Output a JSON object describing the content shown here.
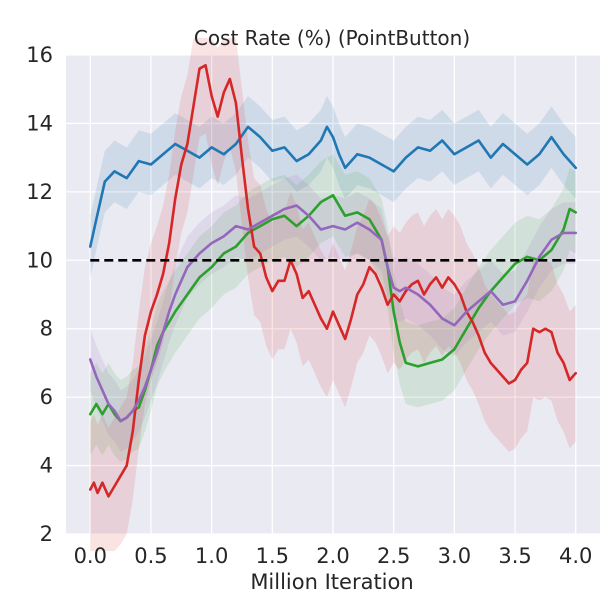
{
  "chart_data": {
    "type": "line",
    "title": "Cost Rate (%) (PointButton)",
    "xlabel": "Million Iteration",
    "ylabel": "",
    "xlim": [
      -0.2,
      4.2
    ],
    "ylim": [
      2,
      16
    ],
    "xticks": [
      0.0,
      0.5,
      1.0,
      1.5,
      2.0,
      2.5,
      3.0,
      3.5,
      4.0
    ],
    "xtick_labels": [
      "0.0",
      "0.5",
      "1.0",
      "1.5",
      "2.0",
      "2.5",
      "3.0",
      "3.5",
      "4.0"
    ],
    "yticks": [
      2,
      4,
      6,
      8,
      10,
      12,
      14,
      16
    ],
    "ytick_labels": [
      "2",
      "4",
      "6",
      "8",
      "10",
      "12",
      "14",
      "16"
    ],
    "grid": true,
    "background": "#eaeaf2",
    "threshold": {
      "y": 10,
      "x_range": [
        0,
        4
      ],
      "color": "#000000",
      "style": "dashed"
    },
    "series": [
      {
        "color": "#1f77b4",
        "band_halfwidth": 0.9,
        "points": [
          [
            0.0,
            10.4
          ],
          [
            0.05,
            11.2
          ],
          [
            0.12,
            12.3
          ],
          [
            0.2,
            12.6
          ],
          [
            0.3,
            12.4
          ],
          [
            0.4,
            12.9
          ],
          [
            0.5,
            12.8
          ],
          [
            0.6,
            13.1
          ],
          [
            0.7,
            13.4
          ],
          [
            0.8,
            13.2
          ],
          [
            0.9,
            13.0
          ],
          [
            1.0,
            13.3
          ],
          [
            1.1,
            13.1
          ],
          [
            1.2,
            13.4
          ],
          [
            1.3,
            13.9
          ],
          [
            1.4,
            13.6
          ],
          [
            1.5,
            13.2
          ],
          [
            1.6,
            13.3
          ],
          [
            1.7,
            12.9
          ],
          [
            1.8,
            13.1
          ],
          [
            1.9,
            13.5
          ],
          [
            1.95,
            13.9
          ],
          [
            2.0,
            13.6
          ],
          [
            2.05,
            13.1
          ],
          [
            2.1,
            12.7
          ],
          [
            2.2,
            13.1
          ],
          [
            2.3,
            13.0
          ],
          [
            2.4,
            12.8
          ],
          [
            2.5,
            12.6
          ],
          [
            2.6,
            13.0
          ],
          [
            2.7,
            13.3
          ],
          [
            2.8,
            13.2
          ],
          [
            2.9,
            13.5
          ],
          [
            3.0,
            13.1
          ],
          [
            3.1,
            13.3
          ],
          [
            3.2,
            13.5
          ],
          [
            3.3,
            13.0
          ],
          [
            3.4,
            13.4
          ],
          [
            3.5,
            13.1
          ],
          [
            3.6,
            12.8
          ],
          [
            3.7,
            13.1
          ],
          [
            3.8,
            13.6
          ],
          [
            3.9,
            13.1
          ],
          [
            4.0,
            12.7
          ]
        ]
      },
      {
        "color": "#2ca02c",
        "band_halfwidth": 1.2,
        "points": [
          [
            0.0,
            5.5
          ],
          [
            0.05,
            5.8
          ],
          [
            0.1,
            5.5
          ],
          [
            0.15,
            5.8
          ],
          [
            0.2,
            5.5
          ],
          [
            0.25,
            5.3
          ],
          [
            0.3,
            5.4
          ],
          [
            0.35,
            5.6
          ],
          [
            0.4,
            5.7
          ],
          [
            0.45,
            6.2
          ],
          [
            0.5,
            6.8
          ],
          [
            0.55,
            7.5
          ],
          [
            0.6,
            7.9
          ],
          [
            0.7,
            8.5
          ],
          [
            0.8,
            9.0
          ],
          [
            0.9,
            9.5
          ],
          [
            1.0,
            9.8
          ],
          [
            1.1,
            10.2
          ],
          [
            1.2,
            10.4
          ],
          [
            1.3,
            10.8
          ],
          [
            1.4,
            11.0
          ],
          [
            1.5,
            11.2
          ],
          [
            1.6,
            11.3
          ],
          [
            1.7,
            11.0
          ],
          [
            1.8,
            11.3
          ],
          [
            1.9,
            11.7
          ],
          [
            2.0,
            11.9
          ],
          [
            2.1,
            11.3
          ],
          [
            2.2,
            11.4
          ],
          [
            2.3,
            11.2
          ],
          [
            2.4,
            10.6
          ],
          [
            2.45,
            9.8
          ],
          [
            2.5,
            8.5
          ],
          [
            2.55,
            7.6
          ],
          [
            2.6,
            7.0
          ],
          [
            2.7,
            6.9
          ],
          [
            2.8,
            7.0
          ],
          [
            2.9,
            7.1
          ],
          [
            3.0,
            7.4
          ],
          [
            3.1,
            8.0
          ],
          [
            3.2,
            8.6
          ],
          [
            3.3,
            9.1
          ],
          [
            3.4,
            9.5
          ],
          [
            3.5,
            9.9
          ],
          [
            3.6,
            10.1
          ],
          [
            3.7,
            10.0
          ],
          [
            3.8,
            10.3
          ],
          [
            3.9,
            10.9
          ],
          [
            3.95,
            11.5
          ],
          [
            4.0,
            11.4
          ]
        ]
      },
      {
        "color": "#d62728",
        "band_halfwidth": 2.0,
        "points": [
          [
            0.0,
            3.3
          ],
          [
            0.03,
            3.5
          ],
          [
            0.06,
            3.2
          ],
          [
            0.1,
            3.5
          ],
          [
            0.15,
            3.1
          ],
          [
            0.2,
            3.4
          ],
          [
            0.25,
            3.7
          ],
          [
            0.3,
            4.0
          ],
          [
            0.35,
            5.0
          ],
          [
            0.4,
            6.5
          ],
          [
            0.45,
            7.8
          ],
          [
            0.5,
            8.5
          ],
          [
            0.55,
            9.0
          ],
          [
            0.6,
            9.6
          ],
          [
            0.65,
            10.5
          ],
          [
            0.7,
            11.8
          ],
          [
            0.75,
            12.8
          ],
          [
            0.8,
            13.4
          ],
          [
            0.85,
            14.5
          ],
          [
            0.9,
            15.6
          ],
          [
            0.95,
            15.7
          ],
          [
            1.0,
            14.8
          ],
          [
            1.05,
            14.2
          ],
          [
            1.1,
            14.9
          ],
          [
            1.15,
            15.3
          ],
          [
            1.2,
            14.6
          ],
          [
            1.25,
            13.0
          ],
          [
            1.3,
            11.5
          ],
          [
            1.35,
            10.4
          ],
          [
            1.4,
            10.2
          ],
          [
            1.45,
            9.5
          ],
          [
            1.5,
            9.1
          ],
          [
            1.55,
            9.4
          ],
          [
            1.6,
            9.4
          ],
          [
            1.65,
            10.0
          ],
          [
            1.7,
            9.6
          ],
          [
            1.75,
            8.9
          ],
          [
            1.8,
            9.1
          ],
          [
            1.85,
            8.7
          ],
          [
            1.9,
            8.3
          ],
          [
            1.95,
            8.0
          ],
          [
            2.0,
            8.5
          ],
          [
            2.05,
            8.1
          ],
          [
            2.1,
            7.7
          ],
          [
            2.15,
            8.3
          ],
          [
            2.2,
            9.0
          ],
          [
            2.25,
            9.3
          ],
          [
            2.3,
            9.8
          ],
          [
            2.35,
            9.6
          ],
          [
            2.4,
            9.2
          ],
          [
            2.45,
            8.7
          ],
          [
            2.5,
            9.0
          ],
          [
            2.55,
            8.8
          ],
          [
            2.6,
            9.1
          ],
          [
            2.65,
            9.3
          ],
          [
            2.7,
            9.4
          ],
          [
            2.75,
            9.0
          ],
          [
            2.8,
            9.3
          ],
          [
            2.85,
            9.5
          ],
          [
            2.9,
            9.2
          ],
          [
            2.95,
            9.5
          ],
          [
            3.0,
            9.3
          ],
          [
            3.05,
            9.0
          ],
          [
            3.1,
            8.5
          ],
          [
            3.15,
            8.2
          ],
          [
            3.2,
            7.8
          ],
          [
            3.25,
            7.3
          ],
          [
            3.3,
            7.0
          ],
          [
            3.35,
            6.8
          ],
          [
            3.4,
            6.6
          ],
          [
            3.45,
            6.4
          ],
          [
            3.5,
            6.5
          ],
          [
            3.55,
            6.8
          ],
          [
            3.6,
            7.0
          ],
          [
            3.65,
            8.0
          ],
          [
            3.7,
            7.9
          ],
          [
            3.75,
            8.0
          ],
          [
            3.8,
            7.9
          ],
          [
            3.85,
            7.3
          ],
          [
            3.9,
            7.0
          ],
          [
            3.95,
            6.5
          ],
          [
            4.0,
            6.7
          ]
        ]
      },
      {
        "color": "#9467bd",
        "band_halfwidth": 0.9,
        "points": [
          [
            0.0,
            7.1
          ],
          [
            0.05,
            6.6
          ],
          [
            0.1,
            6.2
          ],
          [
            0.15,
            5.8
          ],
          [
            0.2,
            5.6
          ],
          [
            0.25,
            5.3
          ],
          [
            0.3,
            5.4
          ],
          [
            0.35,
            5.6
          ],
          [
            0.4,
            5.9
          ],
          [
            0.45,
            6.3
          ],
          [
            0.5,
            6.8
          ],
          [
            0.55,
            7.3
          ],
          [
            0.6,
            7.9
          ],
          [
            0.65,
            8.5
          ],
          [
            0.7,
            9.0
          ],
          [
            0.8,
            9.8
          ],
          [
            0.9,
            10.2
          ],
          [
            1.0,
            10.5
          ],
          [
            1.1,
            10.7
          ],
          [
            1.2,
            11.0
          ],
          [
            1.3,
            10.9
          ],
          [
            1.4,
            11.1
          ],
          [
            1.5,
            11.3
          ],
          [
            1.6,
            11.5
          ],
          [
            1.7,
            11.6
          ],
          [
            1.8,
            11.3
          ],
          [
            1.85,
            11.1
          ],
          [
            1.9,
            10.9
          ],
          [
            2.0,
            11.0
          ],
          [
            2.1,
            10.9
          ],
          [
            2.2,
            11.1
          ],
          [
            2.3,
            10.9
          ],
          [
            2.4,
            10.6
          ],
          [
            2.45,
            9.8
          ],
          [
            2.5,
            9.2
          ],
          [
            2.55,
            9.1
          ],
          [
            2.6,
            9.2
          ],
          [
            2.7,
            9.0
          ],
          [
            2.8,
            8.7
          ],
          [
            2.9,
            8.3
          ],
          [
            3.0,
            8.1
          ],
          [
            3.05,
            8.3
          ],
          [
            3.1,
            8.5
          ],
          [
            3.2,
            8.8
          ],
          [
            3.3,
            9.1
          ],
          [
            3.4,
            8.7
          ],
          [
            3.5,
            8.8
          ],
          [
            3.6,
            9.4
          ],
          [
            3.7,
            10.1
          ],
          [
            3.8,
            10.6
          ],
          [
            3.9,
            10.8
          ],
          [
            4.0,
            10.8
          ]
        ]
      }
    ]
  }
}
